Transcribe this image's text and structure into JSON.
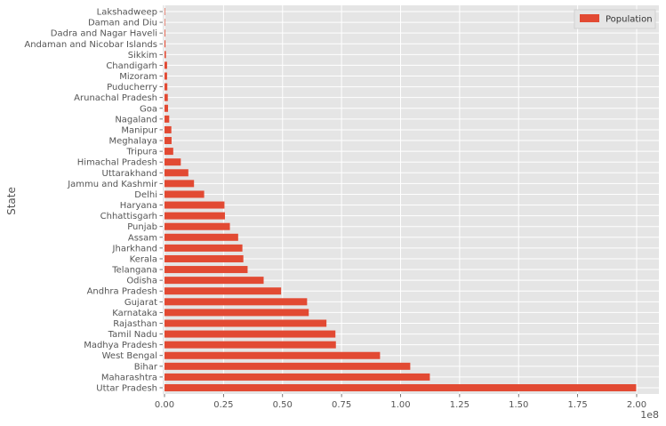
{
  "chart_data": {
    "type": "bar",
    "orientation": "horizontal",
    "title": "",
    "xlabel": "",
    "ylabel": "State",
    "x_offset_label": "1e8",
    "xlim": [
      0,
      2.09
    ],
    "xticks": [
      0,
      0.25,
      0.5,
      0.75,
      1.0,
      1.25,
      1.5,
      1.75,
      2.0
    ],
    "xtick_labels": [
      "0.00",
      "0.25",
      "0.50",
      "0.75",
      "1.00",
      "1.25",
      "1.50",
      "1.75",
      "2.00"
    ],
    "grid": true,
    "legend_position": "top-right",
    "series": [
      {
        "name": "Population",
        "color": "#e24a33",
        "values_1e8": [
          1.998,
          1.124,
          1.041,
          0.913,
          0.726,
          0.724,
          0.686,
          0.611,
          0.604,
          0.494,
          0.42,
          0.352,
          0.334,
          0.33,
          0.312,
          0.277,
          0.256,
          0.254,
          0.168,
          0.125,
          0.101,
          0.069,
          0.037,
          0.03,
          0.029,
          0.02,
          0.015,
          0.014,
          0.012,
          0.011,
          0.011,
          0.006,
          0.004,
          0.003,
          0.002,
          0.001
        ]
      }
    ],
    "categories": [
      "Uttar Pradesh",
      "Maharashtra",
      "Bihar",
      "West Bengal",
      "Madhya Pradesh",
      "Tamil Nadu",
      "Rajasthan",
      "Karnataka",
      "Gujarat",
      "Andhra Pradesh",
      "Odisha",
      "Telangana",
      "Kerala",
      "Jharkhand",
      "Assam",
      "Punjab",
      "Chhattisgarh",
      "Haryana",
      "Delhi",
      "Jammu and Kashmir",
      "Uttarakhand",
      "Himachal Pradesh",
      "Tripura",
      "Meghalaya",
      "Manipur",
      "Nagaland",
      "Goa",
      "Arunachal Pradesh",
      "Puducherry",
      "Mizoram",
      "Chandigarh",
      "Sikkim",
      "Andaman and Nicobar Islands",
      "Dadra and Nagar Haveli",
      "Daman and Diu",
      "Lakshadweep"
    ]
  }
}
